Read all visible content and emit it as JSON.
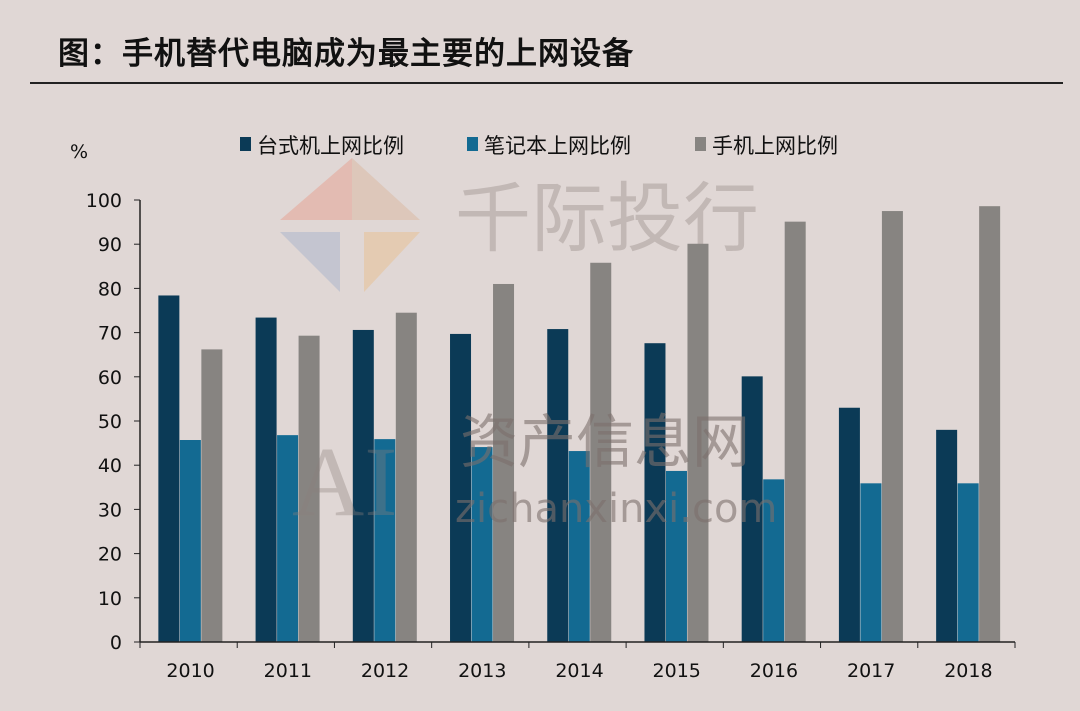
{
  "title": "图：手机替代电脑成为最主要的上网设备",
  "watermark": {
    "brand": "千际投行",
    "site_cn": "资产信息网",
    "site_en": "zichanxinxi.com",
    "logo": "AI"
  },
  "chart_data": {
    "type": "bar",
    "title": "图：手机替代电脑成为最主要的上网设备",
    "ylabel": "%",
    "xlabel": "",
    "ylim": [
      0,
      100
    ],
    "yticks": [
      0,
      10,
      20,
      30,
      40,
      50,
      60,
      70,
      80,
      90,
      100
    ],
    "categories": [
      "2010",
      "2011",
      "2012",
      "2013",
      "2014",
      "2015",
      "2016",
      "2017",
      "2018"
    ],
    "legend_position": "top",
    "grid": false,
    "series": [
      {
        "name": "台式机上网比例",
        "color": "#0b3a56",
        "values": [
          78.4,
          73.4,
          70.6,
          69.7,
          70.8,
          67.6,
          60.1,
          53.0,
          48.0
        ]
      },
      {
        "name": "笔记本上网比例",
        "color": "#136a92",
        "values": [
          45.7,
          46.8,
          45.9,
          44.1,
          43.2,
          38.7,
          36.8,
          35.9,
          35.9
        ]
      },
      {
        "name": "手机上网比例",
        "color": "#878481",
        "values": [
          66.2,
          69.3,
          74.5,
          81.0,
          85.8,
          90.1,
          95.1,
          97.5,
          98.6
        ]
      }
    ]
  }
}
